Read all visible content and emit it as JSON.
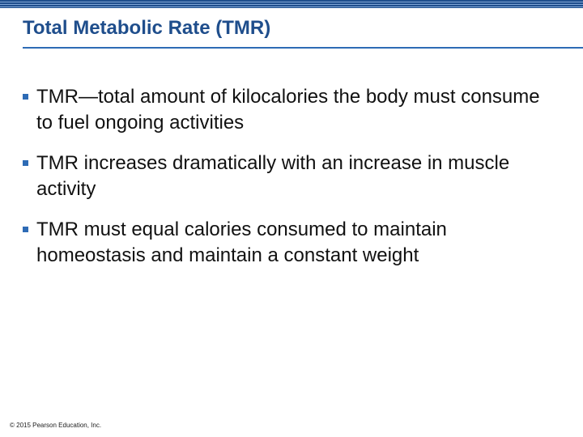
{
  "colors": {
    "title": "#1f4e8c",
    "accent": "#2e6bb5",
    "bullet_marker": "#2e6bb5"
  },
  "slide": {
    "title": "Total Metabolic Rate (TMR)",
    "bullets": [
      "TMR—total amount of kilocalories the body must consume to fuel ongoing activities",
      "TMR increases dramatically with an increase in muscle activity",
      "TMR must equal calories consumed to maintain homeostasis and maintain a constant weight"
    ],
    "footer": "© 2015 Pearson Education, Inc."
  }
}
